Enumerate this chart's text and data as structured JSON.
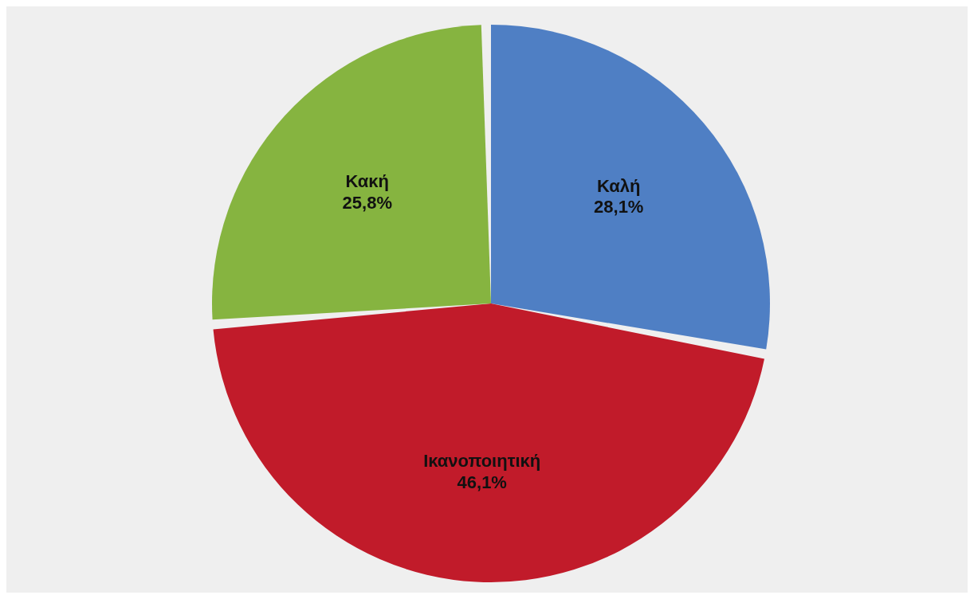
{
  "chart_data": {
    "type": "pie",
    "categories": [
      "Καλή",
      "Ικανοποιητική",
      "Κακή"
    ],
    "values": [
      28.1,
      46.1,
      25.8
    ],
    "value_labels": [
      "28,1%",
      "46,1%",
      "25,8%"
    ],
    "colors": [
      "#4f7fc4",
      "#c11b2a",
      "#86b440"
    ]
  }
}
